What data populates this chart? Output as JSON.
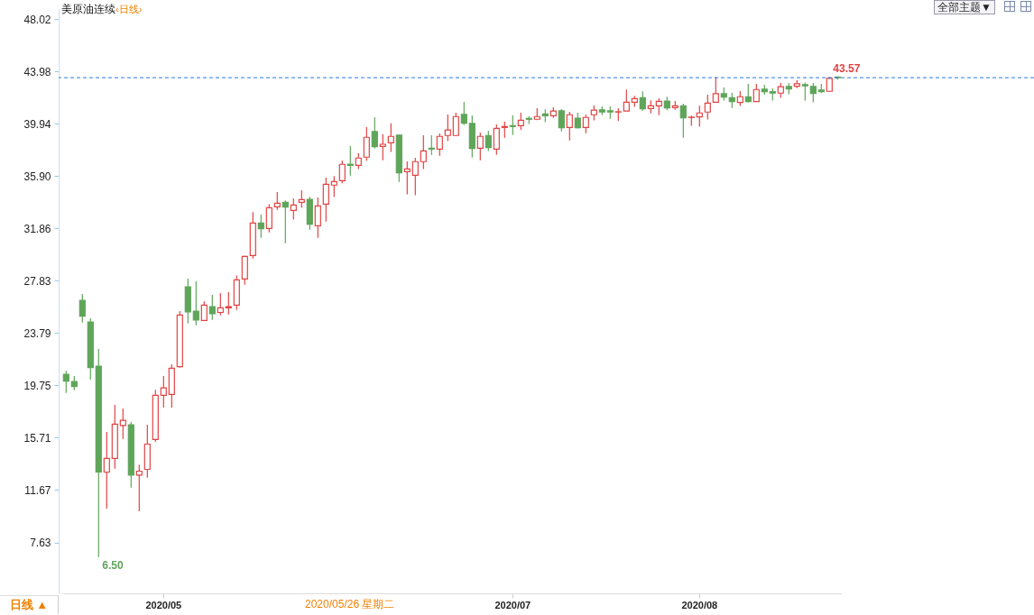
{
  "chart_data": {
    "type": "candlestick",
    "title": "美原油连续",
    "subtitle": "‹日线›",
    "categories": [
      null,
      null,
      null,
      null,
      null,
      null,
      null,
      null,
      null,
      null,
      null,
      null,
      "2020/05",
      null,
      null,
      null,
      null,
      null,
      null,
      null,
      null,
      null,
      null,
      null,
      null,
      null,
      null,
      null,
      null,
      null,
      null,
      null,
      null,
      null,
      null,
      null,
      null,
      null,
      null,
      null,
      null,
      null,
      null,
      null,
      null,
      null,
      null,
      null,
      null,
      null,
      null,
      null,
      null,
      null,
      null,
      "2020/07",
      null,
      null,
      null,
      null,
      null,
      null,
      null,
      null,
      null,
      null,
      null,
      null,
      null,
      null,
      null,
      null,
      null,
      null,
      null,
      null,
      null,
      null,
      "2020/08",
      null,
      null,
      null,
      null,
      null,
      null,
      null,
      null,
      null,
      null,
      null,
      null,
      null,
      null,
      null,
      null,
      null
    ],
    "ohlc": [
      [
        20.61,
        20.89,
        19.17,
        20.08
      ],
      [
        20.05,
        20.47,
        19.38,
        19.66
      ],
      [
        26.32,
        26.81,
        24.6,
        25.09
      ],
      [
        24.65,
        24.93,
        20.19,
        21.12
      ],
      [
        21.24,
        22.56,
        6.5,
        13.06
      ],
      [
        13.06,
        16.15,
        10.25,
        14.11
      ],
      [
        14.11,
        18.24,
        13.32,
        16.76
      ],
      [
        16.66,
        17.96,
        15.62,
        17.06
      ],
      [
        16.71,
        16.92,
        11.86,
        12.83
      ],
      [
        12.83,
        13.64,
        10.04,
        13.13
      ],
      [
        13.27,
        16.71,
        12.62,
        15.22
      ],
      [
        15.57,
        19.42,
        15.39,
        18.98
      ],
      [
        18.98,
        20.47,
        18.03,
        19.56
      ],
      [
        19.05,
        21.38,
        18.03,
        21.07
      ],
      [
        21.19,
        25.48,
        21.12,
        25.18
      ],
      [
        27.36,
        27.99,
        24.53,
        25.43
      ],
      [
        25.48,
        27.78,
        24.39,
        24.8
      ],
      [
        24.76,
        26.24,
        24.76,
        25.94
      ],
      [
        25.83,
        26.73,
        24.8,
        25.29
      ],
      [
        25.38,
        26.87,
        25.15,
        25.73
      ],
      [
        25.73,
        26.94,
        25.22,
        25.83
      ],
      [
        25.94,
        28.24,
        25.57,
        27.89
      ],
      [
        27.96,
        29.77,
        27.52,
        29.7
      ],
      [
        29.77,
        33.12,
        29.54,
        32.28
      ],
      [
        32.28,
        32.93,
        31.14,
        31.84
      ],
      [
        31.86,
        33.74,
        31.56,
        33.46
      ],
      [
        33.53,
        34.67,
        33.3,
        33.81
      ],
      [
        33.88,
        34.02,
        30.73,
        33.51
      ],
      [
        33.25,
        34.18,
        32.54,
        33.67
      ],
      [
        33.88,
        34.81,
        33.46,
        34.09
      ],
      [
        34.11,
        34.3,
        31.77,
        32.19
      ],
      [
        32.07,
        34.25,
        31.14,
        33.6
      ],
      [
        33.74,
        35.79,
        32.4,
        35.27
      ],
      [
        35.21,
        35.9,
        34.28,
        35.48
      ],
      [
        35.55,
        37.11,
        35.35,
        36.81
      ],
      [
        36.83,
        38.22,
        35.95,
        36.74
      ],
      [
        36.74,
        37.67,
        36.44,
        37.3
      ],
      [
        37.37,
        39.69,
        37.09,
        38.9
      ],
      [
        39.34,
        40.45,
        38.04,
        38.18
      ],
      [
        38.2,
        39.13,
        37.13,
        38.36
      ],
      [
        38.48,
        39.97,
        37.76,
        38.97
      ],
      [
        39.06,
        39.13,
        35.46,
        36.16
      ],
      [
        36.25,
        37.04,
        34.49,
        36.46
      ],
      [
        35.97,
        37.32,
        34.42,
        37.02
      ],
      [
        37.02,
        39.06,
        36.44,
        37.85
      ],
      [
        38.06,
        39.06,
        37.55,
        37.99
      ],
      [
        37.99,
        39.2,
        37.48,
        38.97
      ],
      [
        39.04,
        40.66,
        38.6,
        39.46
      ],
      [
        39.04,
        40.8,
        39.04,
        40.5
      ],
      [
        40.66,
        41.64,
        39.85,
        39.99
      ],
      [
        39.97,
        40.59,
        37.34,
        38.04
      ],
      [
        38.06,
        39.27,
        37.13,
        38.97
      ],
      [
        39.04,
        39.41,
        37.83,
        38.11
      ],
      [
        37.99,
        39.9,
        37.55,
        39.59
      ],
      [
        39.66,
        40.11,
        38.87,
        39.73
      ],
      [
        39.8,
        40.59,
        39.08,
        39.73
      ],
      [
        39.8,
        40.8,
        39.48,
        40.22
      ],
      [
        40.36,
        40.52,
        39.92,
        40.29
      ],
      [
        40.29,
        41.15,
        40.22,
        40.5
      ],
      [
        40.7,
        41.05,
        40.06,
        40.56
      ],
      [
        40.56,
        41.22,
        40.4,
        40.92
      ],
      [
        40.94,
        41.08,
        39.36,
        39.64
      ],
      [
        39.66,
        40.87,
        38.66,
        40.64
      ],
      [
        40.38,
        40.8,
        39.57,
        39.64
      ],
      [
        39.66,
        40.66,
        39.22,
        40.43
      ],
      [
        40.64,
        41.36,
        40.2,
        40.99
      ],
      [
        41.01,
        41.29,
        40.61,
        40.85
      ],
      [
        40.94,
        41.29,
        40.33,
        40.85
      ],
      [
        40.85,
        41.15,
        40.15,
        40.87
      ],
      [
        40.92,
        42.59,
        40.92,
        41.61
      ],
      [
        41.61,
        42.1,
        41.24,
        41.89
      ],
      [
        41.96,
        42.45,
        40.94,
        41.1
      ],
      [
        41.12,
        41.75,
        40.75,
        41.33
      ],
      [
        41.33,
        41.91,
        40.61,
        41.68
      ],
      [
        41.7,
        42.03,
        40.99,
        41.17
      ],
      [
        41.19,
        41.7,
        41.03,
        41.33
      ],
      [
        41.33,
        41.5,
        38.87,
        40.4
      ],
      [
        40.43,
        40.57,
        39.78,
        40.45
      ],
      [
        40.47,
        41.33,
        39.71,
        40.78
      ],
      [
        40.85,
        42.19,
        40.27,
        41.54
      ],
      [
        41.61,
        43.55,
        41.61,
        42.26
      ],
      [
        42.26,
        42.75,
        41.73,
        42.01
      ],
      [
        41.96,
        42.33,
        41.17,
        41.66
      ],
      [
        41.59,
        42.47,
        41.31,
        42.03
      ],
      [
        42.03,
        43.03,
        41.59,
        41.66
      ],
      [
        41.66,
        43.03,
        41.66,
        42.59
      ],
      [
        42.61,
        42.96,
        42.19,
        42.42
      ],
      [
        42.42,
        42.68,
        41.73,
        42.31
      ],
      [
        42.31,
        43.1,
        41.94,
        42.8
      ],
      [
        42.82,
        43.1,
        42.22,
        42.63
      ],
      [
        42.84,
        43.31,
        42.7,
        43.03
      ],
      [
        42.96,
        43.12,
        41.73,
        42.87
      ],
      [
        42.82,
        43.1,
        41.59,
        42.29
      ],
      [
        42.54,
        43.03,
        42.33,
        42.42
      ],
      [
        42.45,
        43.57,
        42.45,
        43.45
      ],
      [
        43.55,
        43.56,
        43.33,
        43.5
      ]
    ],
    "colors": [
      "#5fa55a",
      "#5fa55a",
      "#5fa55a",
      "#5fa55a",
      "#5fa55a",
      "#e04343",
      "#e04343",
      "#e04343",
      "#5fa55a",
      "#e04343",
      "#e04343",
      "#e04343",
      "#e04343",
      "#e04343",
      "#e04343",
      "#5fa55a",
      "#5fa55a",
      "#e04343",
      "#5fa55a",
      "#e04343",
      "#e04343",
      "#e04343",
      "#e04343",
      "#e04343",
      "#5fa55a",
      "#e04343",
      "#e04343",
      "#5fa55a",
      "#e04343",
      "#e04343",
      "#5fa55a",
      "#e04343",
      "#e04343",
      "#e04343",
      "#e04343",
      "#5fa55a",
      "#e04343",
      "#e04343",
      "#5fa55a",
      "#e04343",
      "#e04343",
      "#5fa55a",
      "#e04343",
      "#e04343",
      "#e04343",
      "#5fa55a",
      "#e04343",
      "#e04343",
      "#e04343",
      "#5fa55a",
      "#5fa55a",
      "#e04343",
      "#5fa55a",
      "#e04343",
      "#e04343",
      "#5fa55a",
      "#e04343",
      "#5fa55a",
      "#e04343",
      "#5fa55a",
      "#e04343",
      "#5fa55a",
      "#e04343",
      "#5fa55a",
      "#e04343",
      "#e04343",
      "#5fa55a",
      "#5fa55a",
      "#e04343",
      "#e04343",
      "#e04343",
      "#5fa55a",
      "#e04343",
      "#e04343",
      "#5fa55a",
      "#e04343",
      "#5fa55a",
      "#e04343",
      "#e04343",
      "#e04343",
      "#e04343",
      "#5fa55a",
      "#5fa55a",
      "#e04343",
      "#5fa55a",
      "#e04343",
      "#5fa55a",
      "#5fa55a",
      "#e04343",
      "#5fa55a",
      "#e04343",
      "#5fa55a",
      "#5fa55a",
      "#5fa55a",
      "#e04343",
      "#5fa55a"
    ],
    "ylim": [
      3.7,
      48.8
    ],
    "yticks": [
      7.63,
      11.67,
      15.71,
      19.75,
      23.79,
      27.83,
      31.86,
      {
        "value": 35.9,
        "label": "35.90"
      },
      39.94,
      43.98,
      48.02
    ],
    "ref_lines": [
      {
        "axis": "y",
        "value": 43.5,
        "label": null,
        "color": "#2a7ae2",
        "line_style": "dashed"
      }
    ],
    "annotations": [
      "日线 ▲",
      "全部主题▼",
      "2020/05/26 星期二",
      "6.50",
      "43.57"
    ],
    "grid": false
  }
}
